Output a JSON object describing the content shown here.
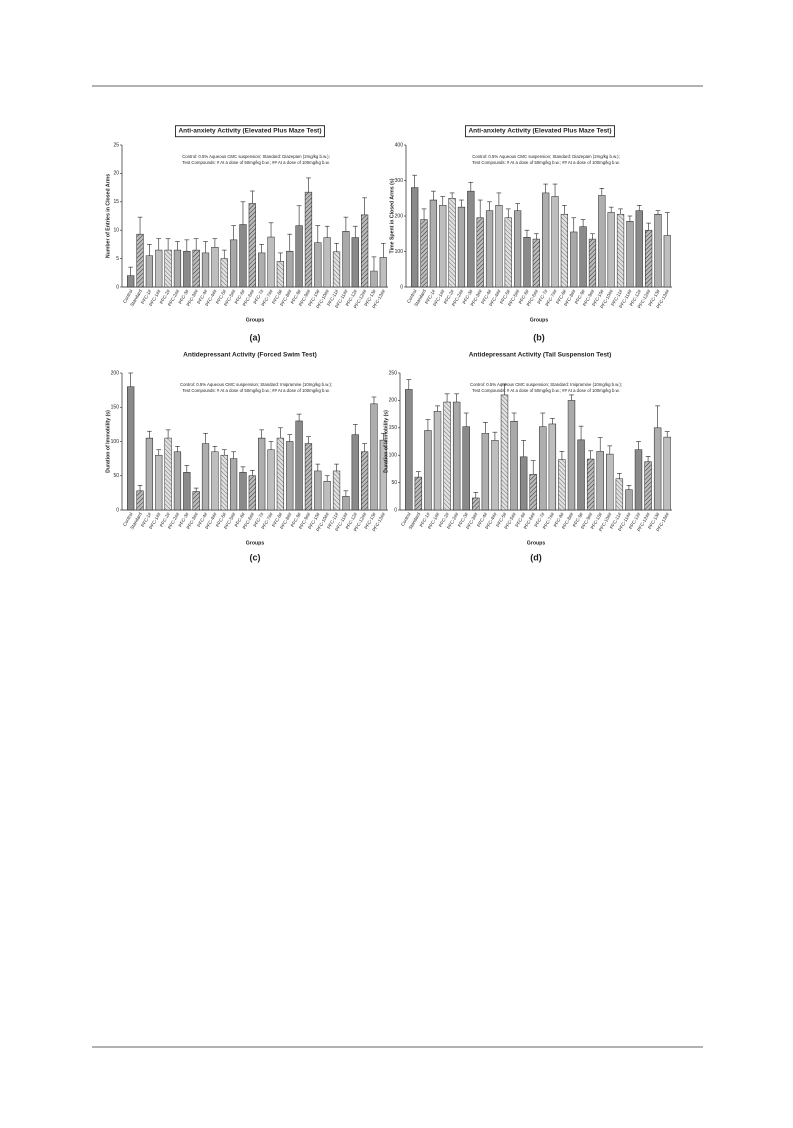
{
  "chart_data": [
    {
      "type": "bar",
      "title": "Anti-anxiety Activity (Elevated Plus Maze Test)",
      "notes": [
        "Control: 0.5% Aqueous CMC suspension; Standard: Diazepam (2mg/kg b.w.);",
        "Test Compounds: # At a dose of 50mg/kg b.w.; ## At a dose of 100mg/kg b.w."
      ],
      "ylabel": "Number of Entries in Closed Arms",
      "xlabel": "Groups",
      "panel_label": "(a)",
      "categories": [
        "Control",
        "Standard",
        "PFC-1#",
        "PFC-1##",
        "PFC-2#",
        "PFC-2##",
        "PFC-3#",
        "PFC-3##",
        "PFC-4#",
        "PFC-4##",
        "PFC-5#",
        "PFC-5##",
        "PFC-6#",
        "PFC-6##",
        "PFC-7#",
        "PFC-7##",
        "PFC-8#",
        "PFC-8##",
        "PFC-9#",
        "PFC-9##",
        "PFC-10#",
        "PFC-10##",
        "PFC-11#",
        "PFC-11##",
        "PFC-12#",
        "PFC-12##",
        "PFC-13#",
        "PFC-13##"
      ],
      "values": [
        2,
        9.3,
        5.5,
        6.5,
        6.5,
        6.5,
        6.3,
        6.5,
        6,
        7,
        5,
        8.3,
        11,
        14.7,
        6,
        8.8,
        4.5,
        6.3,
        10.8,
        16.7,
        7.8,
        8.7,
        6.2,
        9.8,
        8.7,
        12.7,
        2.8,
        5.2
      ],
      "errors": [
        1.5,
        3,
        2,
        2,
        2,
        1.5,
        2,
        2,
        2,
        1.5,
        1.5,
        2.5,
        4,
        2.2,
        1.5,
        2.5,
        1.5,
        3,
        3.5,
        2.5,
        3,
        2,
        1.5,
        2.5,
        2,
        3,
        2.5,
        2.5
      ],
      "ylim": [
        0,
        25
      ],
      "yticks": [
        0,
        5,
        10,
        15,
        20,
        25
      ],
      "color": "#8a8a8a"
    },
    {
      "type": "bar",
      "title": "Anti-anxiety Activity (Elevated Plus Maze Test)",
      "notes": [
        "Control: 0.5% Aqueous CMC suspension; Standard: Diazepam (2mg/kg b.w.);",
        "Test Compounds: # At a dose of 50mg/kg b.w.; ## At a dose of 100mg/kg b.w."
      ],
      "ylabel": "Time Spent in Closed Arms (s)",
      "xlabel": "Groups",
      "panel_label": "(b)",
      "categories": [
        "Control",
        "Standard",
        "PFC-1#",
        "PFC-1##",
        "PFC-2#",
        "PFC-2##",
        "PFC-3#",
        "PFC-3##",
        "PFC-4#",
        "PFC-4##",
        "PFC-5#",
        "PFC-5##",
        "PFC-6#",
        "PFC-6##",
        "PFC-7#",
        "PFC-7##",
        "PFC-8#",
        "PFC-8##",
        "PFC-9#",
        "PFC-9##",
        "PFC-10#",
        "PFC-10##",
        "PFC-11#",
        "PFC-11##",
        "PFC-12#",
        "PFC-12##",
        "PFC-13#",
        "PFC-13##"
      ],
      "values": [
        280,
        190,
        245,
        230,
        250,
        225,
        270,
        195,
        215,
        230,
        195,
        215,
        140,
        135,
        265,
        255,
        205,
        155,
        170,
        135,
        258,
        210,
        205,
        185,
        215,
        160,
        205,
        145
      ],
      "errors": [
        35,
        30,
        25,
        25,
        15,
        20,
        25,
        50,
        25,
        35,
        25,
        20,
        20,
        15,
        25,
        35,
        25,
        40,
        20,
        15,
        20,
        15,
        15,
        15,
        15,
        20,
        10,
        65
      ],
      "ylim": [
        0,
        400
      ],
      "yticks": [
        0,
        100,
        200,
        300,
        400
      ],
      "color": "#8a8a8a"
    },
    {
      "type": "bar",
      "title": "Antidepressant Activity (Forced Swim Test)",
      "notes": [
        "Control: 0.5% Aqueous CMC suspension; Standard: Imipramine (10mg/kg b.w.);",
        "Test Compounds: # At a dose of 50mg/kg b.w.; ## At a dose of 100mg/kg b.w."
      ],
      "ylabel": "Duration of Immobility (s)",
      "xlabel": "Groups",
      "panel_label": "(c)",
      "categories": [
        "Control",
        "Standard",
        "PFC-1#",
        "PFC-1##",
        "PFC-2#",
        "PFC-2##",
        "PFC-3#",
        "PFC-3##",
        "PFC-4#",
        "PFC-4##",
        "PFC-5#",
        "PFC-5##",
        "PFC-6#",
        "PFC-6##",
        "PFC-7#",
        "PFC-7##",
        "PFC-8#",
        "PFC-8##",
        "PFC-9#",
        "PFC-9##",
        "PFC-10#",
        "PFC-10##",
        "PFC-11#",
        "PFC-11##",
        "PFC-12#",
        "PFC-12##",
        "PFC-13#",
        "PFC-13##"
      ],
      "values": [
        180,
        28,
        105,
        80,
        105,
        85,
        55,
        27,
        97,
        85,
        80,
        75,
        55,
        50,
        105,
        88,
        105,
        100,
        130,
        97,
        57,
        42,
        57,
        20,
        110,
        85,
        155,
        102
      ],
      "errors": [
        20,
        8,
        10,
        8,
        12,
        8,
        10,
        5,
        15,
        8,
        8,
        10,
        8,
        8,
        12,
        12,
        15,
        10,
        10,
        10,
        10,
        8,
        10,
        8,
        15,
        12,
        10,
        10
      ],
      "ylim": [
        0,
        200
      ],
      "yticks": [
        0,
        50,
        100,
        150,
        200
      ],
      "color": "#8a8a8a"
    },
    {
      "type": "bar",
      "title": "Antidepressant Activity (Tail Suspension Test)",
      "notes": [
        "Control: 0.5% Aqueous CMC suspension; Standard: Imipramine (10mg/kg b.w.);",
        "Test Compounds: # At a dose of 50mg/kg b.w.; ## At a dose of 100mg/kg b.w."
      ],
      "ylabel": "Duration of Immobility (s)",
      "xlabel": "Groups",
      "panel_label": "(d)",
      "categories": [
        "Control",
        "Standard",
        "PFC-1#",
        "PFC-1##",
        "PFC-2#",
        "PFC-2##",
        "PFC-3#",
        "PFC-3##",
        "PFC-4#",
        "PFC-4##",
        "PFC-5#",
        "PFC-5##",
        "PFC-6#",
        "PFC-6##",
        "PFC-7#",
        "PFC-7##",
        "PFC-8#",
        "PFC-8##",
        "PFC-9#",
        "PFC-9##",
        "PFC-10#",
        "PFC-10##",
        "PFC-11#",
        "PFC-11##",
        "PFC-12#",
        "PFC-12##",
        "PFC-13#",
        "PFC-13##"
      ],
      "values": [
        220,
        60,
        145,
        180,
        197,
        197,
        152,
        22,
        140,
        127,
        210,
        162,
        97,
        65,
        152,
        157,
        92,
        200,
        128,
        93,
        107,
        102,
        57,
        37,
        110,
        88,
        150,
        133
      ],
      "errors": [
        18,
        10,
        20,
        10,
        15,
        15,
        25,
        10,
        20,
        15,
        20,
        15,
        30,
        25,
        25,
        10,
        15,
        10,
        25,
        15,
        25,
        15,
        10,
        8,
        15,
        10,
        40,
        10
      ],
      "ylim": [
        0,
        250
      ],
      "yticks": [
        0,
        50,
        100,
        150,
        200,
        250
      ],
      "color": "#8a8a8a"
    }
  ]
}
